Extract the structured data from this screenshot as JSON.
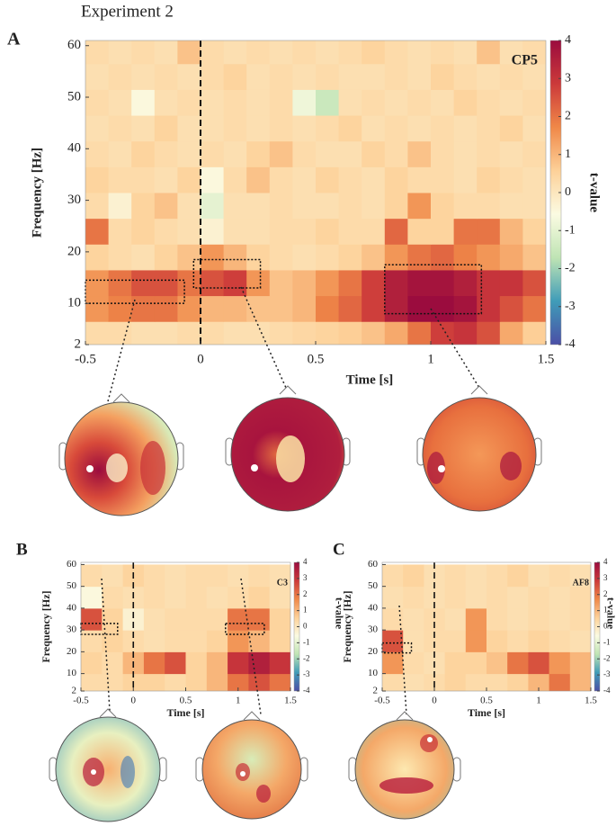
{
  "title": "Experiment 2",
  "colormap": [
    "#4b4fa6",
    "#3f9cb8",
    "#bfe4b4",
    "#fbfbe2",
    "#fdd199",
    "#f08848",
    "#cc3a3a",
    "#9b0c3e"
  ],
  "chart_data": [
    {
      "type": "heatmap",
      "label": "A",
      "channel": "CP5",
      "xlabel": "Time  [s]",
      "ylabel": "Frequency [Hz]",
      "cbar_label": "t-value",
      "xlim": [
        -0.5,
        1.5
      ],
      "ylim": [
        2,
        61
      ],
      "xticks": [
        -0.5,
        0,
        0.5,
        1,
        1.5
      ],
      "yticks": [
        2,
        10,
        20,
        30,
        40,
        50,
        60
      ],
      "clim": [
        -4,
        4
      ],
      "cticks": [
        -4,
        -3,
        -2,
        -1,
        0,
        1,
        2,
        3,
        4
      ],
      "x": [
        -0.45,
        -0.35,
        -0.25,
        -0.15,
        -0.05,
        0.05,
        0.15,
        0.25,
        0.35,
        0.45,
        0.55,
        0.65,
        0.75,
        0.85,
        0.95,
        1.05,
        1.15,
        1.25,
        1.35,
        1.45
      ],
      "y": [
        4,
        9,
        14,
        19,
        24,
        29,
        34,
        39,
        44,
        49,
        54,
        59
      ],
      "values": [
        [
          0.3,
          0.3,
          0.2,
          0.2,
          0.3,
          0.3,
          0.2,
          0.2,
          0.3,
          0.4,
          0.5,
          0.6,
          0.8,
          1.2,
          2,
          2.8,
          3,
          2.5,
          1.2,
          0.6
        ],
        [
          1.5,
          1.8,
          2,
          2,
          1.5,
          1,
          1,
          0.8,
          0.8,
          1,
          1.8,
          2.2,
          2.8,
          3.5,
          4,
          4,
          3.8,
          3,
          2.5,
          2
        ],
        [
          1.5,
          2,
          2.5,
          2.5,
          2,
          2.5,
          2.8,
          1.5,
          0.8,
          1,
          1.5,
          2,
          2.8,
          3.5,
          3.8,
          3.8,
          3.5,
          3,
          3,
          2.5
        ],
        [
          0.5,
          0.3,
          0.2,
          0.5,
          0.8,
          1.5,
          1,
          0.5,
          0.3,
          0.2,
          0.3,
          0.5,
          0.8,
          1.5,
          2,
          2.2,
          1.8,
          1.5,
          1.2,
          0.8
        ],
        [
          2,
          0.3,
          0.5,
          0.3,
          0.2,
          -0.3,
          0.2,
          0.2,
          0.3,
          0.3,
          0.5,
          0.3,
          0.3,
          2.2,
          0.5,
          0.5,
          2,
          2,
          1,
          0.5
        ],
        [
          0.3,
          -0.3,
          0.5,
          0.8,
          0.2,
          -1,
          0.2,
          0.2,
          0.3,
          0.2,
          0.2,
          0.3,
          0.2,
          0.5,
          1.5,
          0.5,
          0.3,
          0.3,
          0.2,
          0.2
        ],
        [
          0.5,
          0.3,
          0.3,
          0.2,
          0.5,
          -0.5,
          0.3,
          0.8,
          0.3,
          0.2,
          0.5,
          0.3,
          0.2,
          0.5,
          0.3,
          0.3,
          0.2,
          0.5,
          0.3,
          0.2
        ],
        [
          0.3,
          0.2,
          0.5,
          0.3,
          0.2,
          0.3,
          0.2,
          0.5,
          0.8,
          0.3,
          0.2,
          0.2,
          0.5,
          0.3,
          0.8,
          0.3,
          0.2,
          0.3,
          0.2,
          0.3
        ],
        [
          0.2,
          0.3,
          0.2,
          0.5,
          0.2,
          0.2,
          0.3,
          0.2,
          0.3,
          0.2,
          0.3,
          0.5,
          0.2,
          0.3,
          0.2,
          0.3,
          0.2,
          0.3,
          0.5,
          0.2
        ],
        [
          0.3,
          0.2,
          -0.5,
          0.2,
          0.3,
          0.2,
          0.3,
          0.2,
          0.3,
          -0.8,
          -1.5,
          0.2,
          0.3,
          0.2,
          0.3,
          0.2,
          0.5,
          0.3,
          0.2,
          0.3
        ],
        [
          0.2,
          0.3,
          0.2,
          0.3,
          0.2,
          0.3,
          0.5,
          0.2,
          0.3,
          0.2,
          0.3,
          0.2,
          0.2,
          0.3,
          0.2,
          0.5,
          0.3,
          0.2,
          0.3,
          0.2
        ],
        [
          0.3,
          0.2,
          0.3,
          0.2,
          0.8,
          0.3,
          0.2,
          0.3,
          0.2,
          0.3,
          0.2,
          0.3,
          0.5,
          0.3,
          0.2,
          0.3,
          0.2,
          0.8,
          0.2,
          0.3
        ]
      ],
      "boxes": [
        {
          "x": [
            -0.5,
            -0.07
          ],
          "y": [
            10,
            14.5
          ]
        },
        {
          "x": [
            -0.03,
            0.26
          ],
          "y": [
            13,
            18.5
          ]
        },
        {
          "x": [
            0.8,
            1.22
          ],
          "y": [
            8,
            17.5
          ]
        }
      ]
    },
    {
      "type": "heatmap",
      "label": "B",
      "channel": "C3",
      "xlabel": "Time  [s]",
      "ylabel": "Frequency [Hz]",
      "cbar_label": "t-value",
      "xlim": [
        -0.5,
        1.5
      ],
      "ylim": [
        2,
        61
      ],
      "xticks": [
        -0.5,
        0,
        0.5,
        1,
        1.5
      ],
      "yticks": [
        2,
        10,
        20,
        30,
        40,
        50,
        60
      ],
      "clim": [
        -4,
        4
      ],
      "cticks": [
        -4,
        -3,
        -2,
        -1,
        0,
        1,
        2,
        3,
        4
      ],
      "x": [
        -0.4,
        -0.2,
        0,
        0.2,
        0.4,
        0.6,
        0.8,
        1,
        1.2,
        1.4
      ],
      "y": [
        5,
        15,
        25,
        35,
        45,
        55
      ],
      "values": [
        [
          0.3,
          0.3,
          0.5,
          0.5,
          0.3,
          0.5,
          1,
          2,
          2.5,
          2
        ],
        [
          0.5,
          0.3,
          1,
          2,
          2.5,
          0.5,
          1,
          3,
          3.5,
          3
        ],
        [
          0.3,
          0.5,
          0.3,
          0.2,
          0.3,
          0.3,
          0.5,
          1.5,
          1,
          0.5
        ],
        [
          2.5,
          0.5,
          -0.3,
          0.2,
          0.3,
          0.3,
          0.3,
          2,
          2,
          0.5
        ],
        [
          -0.5,
          0.3,
          0.2,
          0.3,
          0.2,
          0.3,
          0.2,
          0.3,
          0.5,
          0.2
        ],
        [
          0.3,
          0.2,
          0.5,
          0.3,
          0.2,
          0.3,
          0.3,
          0.2,
          0.3,
          0.2
        ]
      ],
      "boxes": [
        {
          "x": [
            -0.5,
            -0.15
          ],
          "y": [
            28,
            33
          ]
        },
        {
          "x": [
            0.88,
            1.25
          ],
          "y": [
            28,
            33
          ]
        }
      ]
    },
    {
      "type": "heatmap",
      "label": "C",
      "channel": "AF8",
      "xlabel": "Time  [s]",
      "ylabel": "Frequency [Hz]",
      "cbar_label": "t-value",
      "xlim": [
        -0.5,
        1.5
      ],
      "ylim": [
        2,
        61
      ],
      "xticks": [
        -0.5,
        0,
        0.5,
        1,
        1.5
      ],
      "yticks": [
        2,
        10,
        20,
        30,
        40,
        50,
        60
      ],
      "clim": [
        -4,
        4
      ],
      "cticks": [
        -4,
        -3,
        -2,
        -1,
        0,
        1,
        2,
        3,
        4
      ],
      "x": [
        -0.4,
        -0.2,
        0,
        0.2,
        0.4,
        0.6,
        0.8,
        1,
        1.2,
        1.4
      ],
      "y": [
        5,
        15,
        25,
        35,
        45,
        55
      ],
      "values": [
        [
          0.3,
          0.2,
          0.3,
          0.5,
          0.3,
          0.3,
          0.5,
          1,
          2,
          1
        ],
        [
          1.5,
          0.3,
          0.2,
          0.5,
          0.5,
          0.8,
          2,
          2.5,
          1.5,
          1
        ],
        [
          2.5,
          0.2,
          0.3,
          0.3,
          1.5,
          0.5,
          0.3,
          0.5,
          0.3,
          0.2
        ],
        [
          0.3,
          0.2,
          0.3,
          0.2,
          1.5,
          0.3,
          0.2,
          0.3,
          0.2,
          0.3
        ],
        [
          0.2,
          0.3,
          0.2,
          0.3,
          0.2,
          0.3,
          0.2,
          0.3,
          0.2,
          0.3
        ],
        [
          0.3,
          0.5,
          0.2,
          0.3,
          0.2,
          0.3,
          0.5,
          0.2,
          0.3,
          0.2
        ]
      ],
      "boxes": [
        {
          "x": [
            -0.5,
            -0.22
          ],
          "y": [
            19.5,
            24
          ]
        }
      ]
    }
  ]
}
